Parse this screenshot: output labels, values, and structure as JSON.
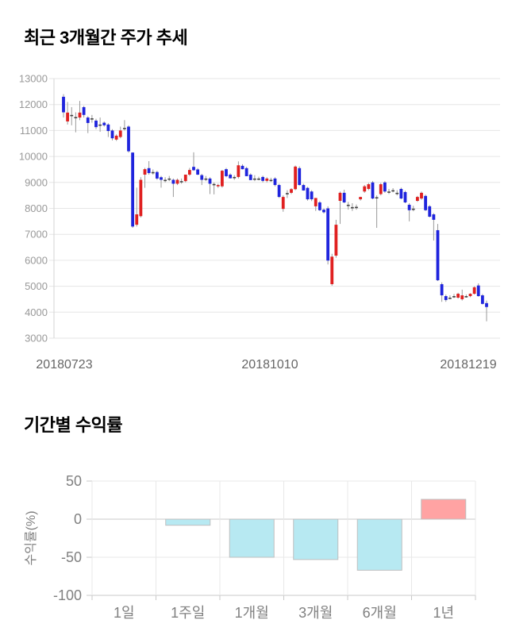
{
  "page": {
    "background": "#ffffff"
  },
  "chart_data": [
    {
      "type": "candlestick",
      "title": "최근 3개월간 주가 추세",
      "ylim": [
        3000,
        13000
      ],
      "y_ticks": [
        13000,
        12000,
        11000,
        10000,
        9000,
        8000,
        7000,
        6000,
        5000,
        4000,
        3000
      ],
      "x_labels": [
        "20180723",
        "20181010",
        "20181219"
      ],
      "grid": true,
      "colors": {
        "up": "#e02020",
        "down": "#1f24dd",
        "wick": "#999999",
        "doji": "#444444",
        "grid": "#e6e6e6",
        "axis_border": "#d5d5d5",
        "tick_label": "#999999",
        "date_label": "#666666"
      },
      "candles_format": "[open, high, low, close] — red body = close above open, blue body = close below open, dark dash = doji",
      "candles": [
        [
          12300,
          12400,
          11500,
          11700
        ],
        [
          11350,
          12100,
          11230,
          11690
        ],
        [
          11600,
          11900,
          11200,
          11600
        ],
        [
          11520,
          11700,
          10930,
          11520
        ],
        [
          11500,
          12140,
          11400,
          11690
        ],
        [
          11900,
          11950,
          11500,
          11600
        ],
        [
          11500,
          11550,
          10900,
          11290
        ],
        [
          11470,
          11600,
          11300,
          11470
        ],
        [
          11380,
          11450,
          11050,
          11130
        ],
        [
          11230,
          11500,
          10950,
          11230
        ],
        [
          11300,
          11350,
          11150,
          11200
        ],
        [
          11230,
          11280,
          10750,
          10980
        ],
        [
          11000,
          11050,
          10620,
          10700
        ],
        [
          10650,
          10850,
          10600,
          10800
        ],
        [
          10750,
          11150,
          10700,
          11000
        ],
        [
          11100,
          11400,
          11000,
          11100
        ],
        [
          11150,
          11200,
          10150,
          10200
        ],
        [
          10150,
          10160,
          7250,
          7300
        ],
        [
          7370,
          8800,
          7300,
          7770
        ],
        [
          7700,
          9200,
          7650,
          9100
        ],
        [
          9300,
          9560,
          8790,
          9510
        ],
        [
          9550,
          9820,
          9300,
          9360
        ],
        [
          9400,
          9500,
          9300,
          9400
        ],
        [
          9400,
          9450,
          9100,
          9150
        ],
        [
          9200,
          9250,
          8800,
          9100
        ],
        [
          9100,
          9200,
          9000,
          9100
        ],
        [
          9150,
          9250,
          9050,
          9150
        ],
        [
          9100,
          9150,
          8440,
          8950
        ],
        [
          8950,
          9150,
          8900,
          9100
        ],
        [
          9050,
          9150,
          8950,
          9050
        ],
        [
          9050,
          9300,
          9000,
          9300
        ],
        [
          9300,
          9560,
          9250,
          9480
        ],
        [
          9600,
          10160,
          9450,
          9470
        ],
        [
          9500,
          9550,
          9280,
          9300
        ],
        [
          9280,
          9330,
          8900,
          9100
        ],
        [
          9150,
          9250,
          9050,
          9150
        ],
        [
          9150,
          9200,
          8550,
          8950
        ],
        [
          8940,
          9000,
          8540,
          8940
        ],
        [
          8850,
          8950,
          8790,
          8900
        ],
        [
          8850,
          9480,
          8800,
          9450
        ],
        [
          9510,
          9560,
          9200,
          9240
        ],
        [
          9300,
          9350,
          9150,
          9160
        ],
        [
          9210,
          9280,
          9100,
          9210
        ],
        [
          9210,
          9810,
          9150,
          9660
        ],
        [
          9640,
          9700,
          9500,
          9510
        ],
        [
          9550,
          9600,
          9240,
          9240
        ],
        [
          9300,
          9350,
          9090,
          9090
        ],
        [
          9150,
          9280,
          9050,
          9150
        ],
        [
          9150,
          9220,
          9080,
          9150
        ],
        [
          9210,
          9260,
          9000,
          9060
        ],
        [
          9060,
          9200,
          9000,
          9150
        ],
        [
          9100,
          9180,
          9020,
          9100
        ],
        [
          9150,
          9200,
          8850,
          8900
        ],
        [
          8900,
          8950,
          8400,
          8440
        ],
        [
          7980,
          8500,
          7870,
          8440
        ],
        [
          8590,
          8700,
          8400,
          8590
        ],
        [
          8600,
          8780,
          8550,
          8740
        ],
        [
          8740,
          9650,
          8700,
          9610
        ],
        [
          9550,
          9620,
          8880,
          8900
        ],
        [
          8900,
          8950,
          8680,
          8690
        ],
        [
          8790,
          8830,
          8300,
          8350
        ],
        [
          8650,
          8700,
          8280,
          8350
        ],
        [
          8080,
          8400,
          7900,
          8400
        ],
        [
          8230,
          8280,
          7900,
          7930
        ],
        [
          7950,
          8000,
          7800,
          7850
        ],
        [
          8000,
          8080,
          5840,
          5990
        ],
        [
          5080,
          6250,
          5020,
          6140
        ],
        [
          6180,
          7560,
          6100,
          7370
        ],
        [
          8290,
          8650,
          7400,
          8600
        ],
        [
          8600,
          8720,
          8200,
          8230
        ],
        [
          8140,
          8250,
          7950,
          8140
        ],
        [
          8050,
          8200,
          7900,
          8050
        ],
        [
          8060,
          8150,
          7950,
          8060
        ],
        [
          8350,
          8450,
          8300,
          8440
        ],
        [
          8650,
          8900,
          8600,
          8850
        ],
        [
          8750,
          8980,
          8700,
          8930
        ],
        [
          9000,
          9050,
          8350,
          8380
        ],
        [
          8430,
          8500,
          7250,
          8430
        ],
        [
          8550,
          8980,
          8500,
          8930
        ],
        [
          9000,
          9050,
          8600,
          8650
        ],
        [
          8650,
          8750,
          8550,
          8650
        ],
        [
          8700,
          8780,
          8620,
          8700
        ],
        [
          8600,
          8700,
          8500,
          8600
        ],
        [
          8750,
          8800,
          8350,
          8380
        ],
        [
          8630,
          8680,
          8200,
          8230
        ],
        [
          8140,
          8200,
          7500,
          7930
        ],
        [
          7990,
          8100,
          7890,
          7990
        ],
        [
          8290,
          8480,
          8250,
          8440
        ],
        [
          8380,
          8650,
          8330,
          8600
        ],
        [
          8480,
          8530,
          7900,
          7930
        ],
        [
          8080,
          8130,
          7650,
          7680
        ],
        [
          7770,
          7820,
          6760,
          7560
        ],
        [
          7160,
          7400,
          5200,
          5230
        ],
        [
          5080,
          5150,
          4400,
          4650
        ],
        [
          4620,
          4680,
          4400,
          4470
        ],
        [
          4560,
          4650,
          4500,
          4560
        ],
        [
          4620,
          4700,
          4550,
          4620
        ],
        [
          4560,
          4750,
          4520,
          4710
        ],
        [
          4500,
          4870,
          4450,
          4650
        ],
        [
          4620,
          4680,
          4560,
          4620
        ],
        [
          4620,
          4730,
          4580,
          4710
        ],
        [
          4710,
          5000,
          4680,
          4960
        ],
        [
          5030,
          5110,
          4600,
          4620
        ],
        [
          4650,
          4700,
          4300,
          4320
        ],
        [
          4350,
          4450,
          3650,
          4200
        ]
      ]
    },
    {
      "type": "bar",
      "title": "기간별 수익률",
      "categories": [
        "1일",
        "1주일",
        "1개월",
        "3개월",
        "6개월",
        "1년"
      ],
      "values": [
        0,
        -8,
        -50,
        -53,
        -67,
        26
      ],
      "ylabel": "수익률(%)",
      "xlabel": "",
      "y_ticks": [
        50,
        0,
        -50,
        -100
      ],
      "ylim": [
        -100,
        50
      ],
      "grid": true,
      "legend": "none",
      "colors": {
        "negative_fill": "#b7e9f2",
        "positive_fill": "#ffa3a3",
        "bar_border": "#bfbfbf",
        "grid": "#e8e8e8",
        "zero_line": "#c9c9c9",
        "tick_label": "#808080",
        "axis_label": "#808080"
      }
    }
  ]
}
